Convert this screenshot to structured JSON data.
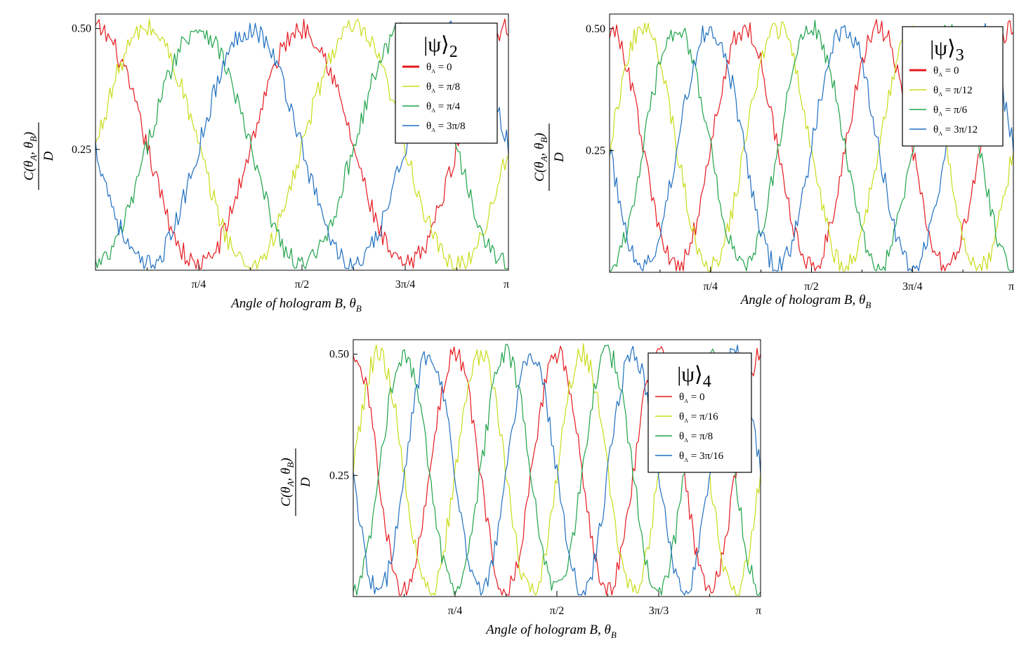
{
  "figure": {
    "charts": [
      {
        "state_label": "2",
        "legend": [
          "0",
          "π/8",
          "π/4",
          "3π/8"
        ],
        "xticks": [
          "π/4",
          "π/2",
          "3π/4",
          "π"
        ],
        "xlabel": "Angle of hologram B, θ",
        "xlabel_sub": "B",
        "ylabel": "C(θA, θB) / D"
      },
      {
        "state_label": "3",
        "legend": [
          "0",
          "π/12",
          "π/6",
          "3π/12"
        ],
        "xticks": [
          "π/4",
          "π/2",
          "3π/4",
          "π"
        ],
        "xlabel": "Angle of hologram B, θ",
        "xlabel_sub": "B",
        "ylabel": "C(θA, θB) / D"
      },
      {
        "state_label": "4",
        "legend": [
          "0",
          "π/16",
          "π/8",
          "3π/16"
        ],
        "xticks": [
          "π/4",
          "π/2",
          "3π/3",
          "π"
        ],
        "xlabel": "Angle of hologram B, θ",
        "xlabel_sub": "B",
        "ylabel": "C(θA, θB) / D"
      }
    ],
    "yticks": [
      "0.50",
      "0.25"
    ],
    "colors": [
      "#e5191e",
      "#c8dc19",
      "#1fa34a",
      "#1f6fc0"
    ]
  },
  "chart_data": [
    {
      "type": "line",
      "title": "|ψ⟩2",
      "xlabel": "Angle of hologram B, θB",
      "ylabel": "C(θA, θB)/D",
      "xlim": [
        0,
        3.1416
      ],
      "ylim": [
        0,
        0.53
      ],
      "yticks": [
        0.25,
        0.5
      ],
      "xtick_labels": [
        "π/4",
        "π/2",
        "3π/4",
        "π"
      ],
      "period": 1.5708,
      "series": [
        {
          "name": "θA = 0",
          "phase": 0.0,
          "points": [
            [
              0,
              0.5
            ],
            [
              0.393,
              0.25
            ],
            [
              0.785,
              0.01
            ],
            [
              1.178,
              0.25
            ],
            [
              1.571,
              0.5
            ],
            [
              1.963,
              0.25
            ],
            [
              2.356,
              0.01
            ],
            [
              2.749,
              0.25
            ],
            [
              3.142,
              0.5
            ]
          ]
        },
        {
          "name": "θA = π/8",
          "phase": 0.3927,
          "points": [
            [
              0,
              0.25
            ],
            [
              0.393,
              0.5
            ],
            [
              0.785,
              0.25
            ],
            [
              1.178,
              0.01
            ],
            [
              1.571,
              0.25
            ],
            [
              1.963,
              0.5
            ],
            [
              2.356,
              0.25
            ],
            [
              2.749,
              0.01
            ],
            [
              3.142,
              0.25
            ]
          ]
        },
        {
          "name": "θA = π/4",
          "phase": 0.7854,
          "points": [
            [
              0,
              0.01
            ],
            [
              0.393,
              0.25
            ],
            [
              0.785,
              0.5
            ],
            [
              1.178,
              0.25
            ],
            [
              1.571,
              0.01
            ],
            [
              1.963,
              0.25
            ],
            [
              2.356,
              0.5
            ],
            [
              2.749,
              0.25
            ],
            [
              3.142,
              0.01
            ]
          ]
        },
        {
          "name": "θA = 3π/8",
          "phase": 1.1781,
          "points": [
            [
              0,
              0.25
            ],
            [
              0.393,
              0.01
            ],
            [
              0.785,
              0.25
            ],
            [
              1.178,
              0.5
            ],
            [
              1.571,
              0.25
            ],
            [
              1.963,
              0.01
            ],
            [
              2.356,
              0.25
            ],
            [
              2.749,
              0.5
            ],
            [
              3.142,
              0.25
            ]
          ]
        }
      ],
      "legend_position": "top-right",
      "grid": false
    },
    {
      "type": "line",
      "title": "|ψ⟩3",
      "xlabel": "Angle of hologram B, θB",
      "ylabel": "C(θA, θB)/D",
      "xlim": [
        0,
        3.1416
      ],
      "ylim": [
        0,
        0.53
      ],
      "yticks": [
        0.25,
        0.5
      ],
      "xtick_labels": [
        "π/4",
        "π/2",
        "3π/4",
        "π"
      ],
      "period": 1.0472,
      "series": [
        {
          "name": "θA = 0",
          "phase": 0.0,
          "points": [
            [
              0,
              0.5
            ],
            [
              0.262,
              0.25
            ],
            [
              0.524,
              0.01
            ],
            [
              0.785,
              0.25
            ],
            [
              1.047,
              0.5
            ],
            [
              1.309,
              0.25
            ],
            [
              1.571,
              0.01
            ],
            [
              1.833,
              0.25
            ],
            [
              2.094,
              0.5
            ],
            [
              2.356,
              0.25
            ],
            [
              2.618,
              0.01
            ],
            [
              2.88,
              0.25
            ],
            [
              3.142,
              0.5
            ]
          ]
        },
        {
          "name": "θA = π/12",
          "phase": 0.2618,
          "points": [
            [
              0,
              0.25
            ],
            [
              0.262,
              0.5
            ],
            [
              0.524,
              0.25
            ],
            [
              0.785,
              0.01
            ],
            [
              1.047,
              0.25
            ],
            [
              1.309,
              0.5
            ],
            [
              1.571,
              0.25
            ],
            [
              1.833,
              0.01
            ],
            [
              2.094,
              0.25
            ],
            [
              2.356,
              0.5
            ],
            [
              2.618,
              0.25
            ],
            [
              2.88,
              0.01
            ],
            [
              3.142,
              0.25
            ]
          ]
        },
        {
          "name": "θA = π/6",
          "phase": 0.5236,
          "points": [
            [
              0,
              0.01
            ],
            [
              0.262,
              0.25
            ],
            [
              0.524,
              0.5
            ],
            [
              0.785,
              0.25
            ],
            [
              1.047,
              0.01
            ],
            [
              1.309,
              0.25
            ],
            [
              1.571,
              0.5
            ],
            [
              1.833,
              0.25
            ],
            [
              2.094,
              0.01
            ],
            [
              2.356,
              0.25
            ],
            [
              2.618,
              0.5
            ],
            [
              2.88,
              0.25
            ],
            [
              3.142,
              0.01
            ]
          ]
        },
        {
          "name": "θA = 3π/12",
          "phase": 0.7854,
          "points": [
            [
              0,
              0.25
            ],
            [
              0.262,
              0.01
            ],
            [
              0.524,
              0.25
            ],
            [
              0.785,
              0.5
            ],
            [
              1.047,
              0.25
            ],
            [
              1.309,
              0.01
            ],
            [
              1.571,
              0.25
            ],
            [
              1.833,
              0.5
            ],
            [
              2.094,
              0.25
            ],
            [
              2.356,
              0.01
            ],
            [
              2.618,
              0.25
            ],
            [
              2.88,
              0.5
            ],
            [
              3.142,
              0.25
            ]
          ]
        }
      ],
      "legend_position": "top-right",
      "grid": false
    },
    {
      "type": "line",
      "title": "|ψ⟩4",
      "xlabel": "Angle of hologram B, θB",
      "ylabel": "C(θA, θB)/D",
      "xlim": [
        0,
        3.1416
      ],
      "ylim": [
        0,
        0.53
      ],
      "yticks": [
        0.25,
        0.5
      ],
      "xtick_labels": [
        "π/4",
        "π/2",
        "3π/3",
        "π"
      ],
      "period": 0.7854,
      "series": [
        {
          "name": "θA = 0",
          "phase": 0.0,
          "points": [
            [
              0,
              0.5
            ],
            [
              0.196,
              0.25
            ],
            [
              0.393,
              0.01
            ],
            [
              0.589,
              0.25
            ],
            [
              0.785,
              0.5
            ],
            [
              0.982,
              0.25
            ],
            [
              1.178,
              0.01
            ],
            [
              1.374,
              0.25
            ],
            [
              1.571,
              0.5
            ],
            [
              1.767,
              0.25
            ],
            [
              1.963,
              0.01
            ],
            [
              2.16,
              0.25
            ],
            [
              2.356,
              0.5
            ],
            [
              2.553,
              0.25
            ],
            [
              2.749,
              0.01
            ],
            [
              2.945,
              0.25
            ],
            [
              3.142,
              0.5
            ]
          ]
        },
        {
          "name": "θA = π/16",
          "phase": 0.1963,
          "points": [
            [
              0,
              0.25
            ],
            [
              0.196,
              0.5
            ],
            [
              0.393,
              0.25
            ],
            [
              0.589,
              0.01
            ],
            [
              0.785,
              0.25
            ],
            [
              0.982,
              0.5
            ],
            [
              1.178,
              0.25
            ],
            [
              1.374,
              0.01
            ],
            [
              1.571,
              0.25
            ],
            [
              1.767,
              0.5
            ],
            [
              1.963,
              0.25
            ],
            [
              2.16,
              0.01
            ],
            [
              2.356,
              0.25
            ],
            [
              2.553,
              0.5
            ],
            [
              2.749,
              0.25
            ],
            [
              2.945,
              0.01
            ],
            [
              3.142,
              0.25
            ]
          ]
        },
        {
          "name": "θA = π/8",
          "phase": 0.3927,
          "points": [
            [
              0,
              0.01
            ],
            [
              0.196,
              0.25
            ],
            [
              0.393,
              0.5
            ],
            [
              0.589,
              0.25
            ],
            [
              0.785,
              0.01
            ],
            [
              0.982,
              0.25
            ],
            [
              1.178,
              0.5
            ],
            [
              1.374,
              0.25
            ],
            [
              1.571,
              0.01
            ],
            [
              1.767,
              0.25
            ],
            [
              1.963,
              0.5
            ],
            [
              2.16,
              0.25
            ],
            [
              2.356,
              0.01
            ],
            [
              2.553,
              0.25
            ],
            [
              2.749,
              0.5
            ],
            [
              2.945,
              0.25
            ],
            [
              3.142,
              0.01
            ]
          ]
        },
        {
          "name": "θA = 3π/16",
          "phase": 0.589,
          "points": [
            [
              0,
              0.25
            ],
            [
              0.196,
              0.01
            ],
            [
              0.393,
              0.25
            ],
            [
              0.589,
              0.5
            ],
            [
              0.785,
              0.25
            ],
            [
              0.982,
              0.01
            ],
            [
              1.178,
              0.25
            ],
            [
              1.374,
              0.5
            ],
            [
              1.571,
              0.25
            ],
            [
              1.767,
              0.01
            ],
            [
              1.963,
              0.25
            ],
            [
              2.16,
              0.5
            ],
            [
              2.356,
              0.25
            ],
            [
              2.553,
              0.01
            ],
            [
              2.749,
              0.25
            ],
            [
              2.945,
              0.5
            ],
            [
              3.142,
              0.25
            ]
          ]
        }
      ],
      "legend_position": "top-right",
      "grid": false
    }
  ]
}
